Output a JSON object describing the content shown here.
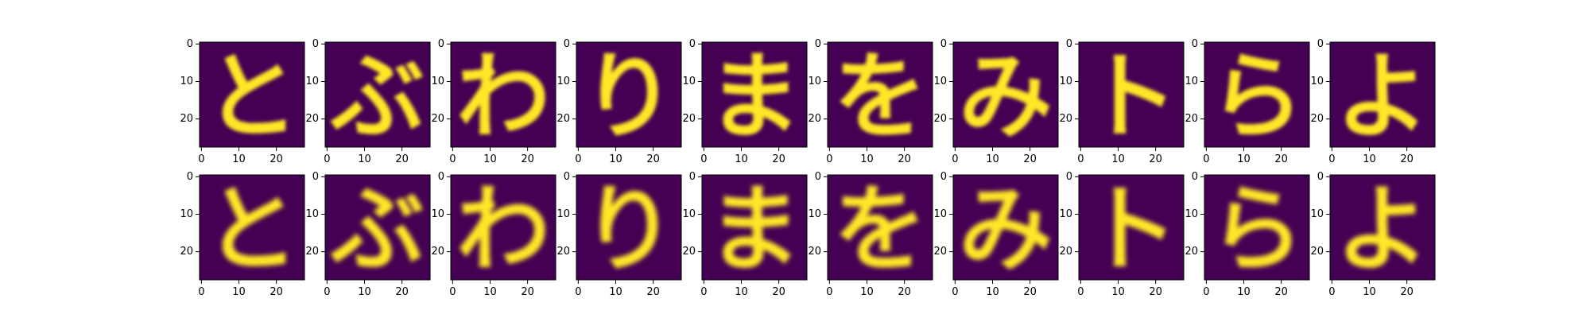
{
  "figure": {
    "background": "#ffffff",
    "colormap": "viridis",
    "low_color": "#440154",
    "high_color": "#fde725"
  },
  "chart_data": {
    "type": "heatmap",
    "layout": {
      "rows": 2,
      "cols": 10
    },
    "image_size": [
      28,
      28
    ],
    "axes": {
      "xlim": [
        0,
        27
      ],
      "ylim": [
        0,
        27
      ],
      "x_ticks": [
        "0",
        "10",
        "20"
      ],
      "y_ticks": [
        "0",
        "10",
        "20"
      ],
      "grid": false
    },
    "colormap": "viridis",
    "value_range": [
      0,
      1
    ],
    "rows": [
      {
        "panels": [
          "と",
          "ぶ",
          "わ",
          "り",
          "ま",
          "を",
          "み",
          "ト",
          "ら",
          "よ"
        ]
      },
      {
        "panels": [
          "と",
          "ぶ",
          "わ",
          "り",
          "ま",
          "を",
          "み",
          "ト",
          "ら",
          "よ"
        ]
      }
    ]
  }
}
